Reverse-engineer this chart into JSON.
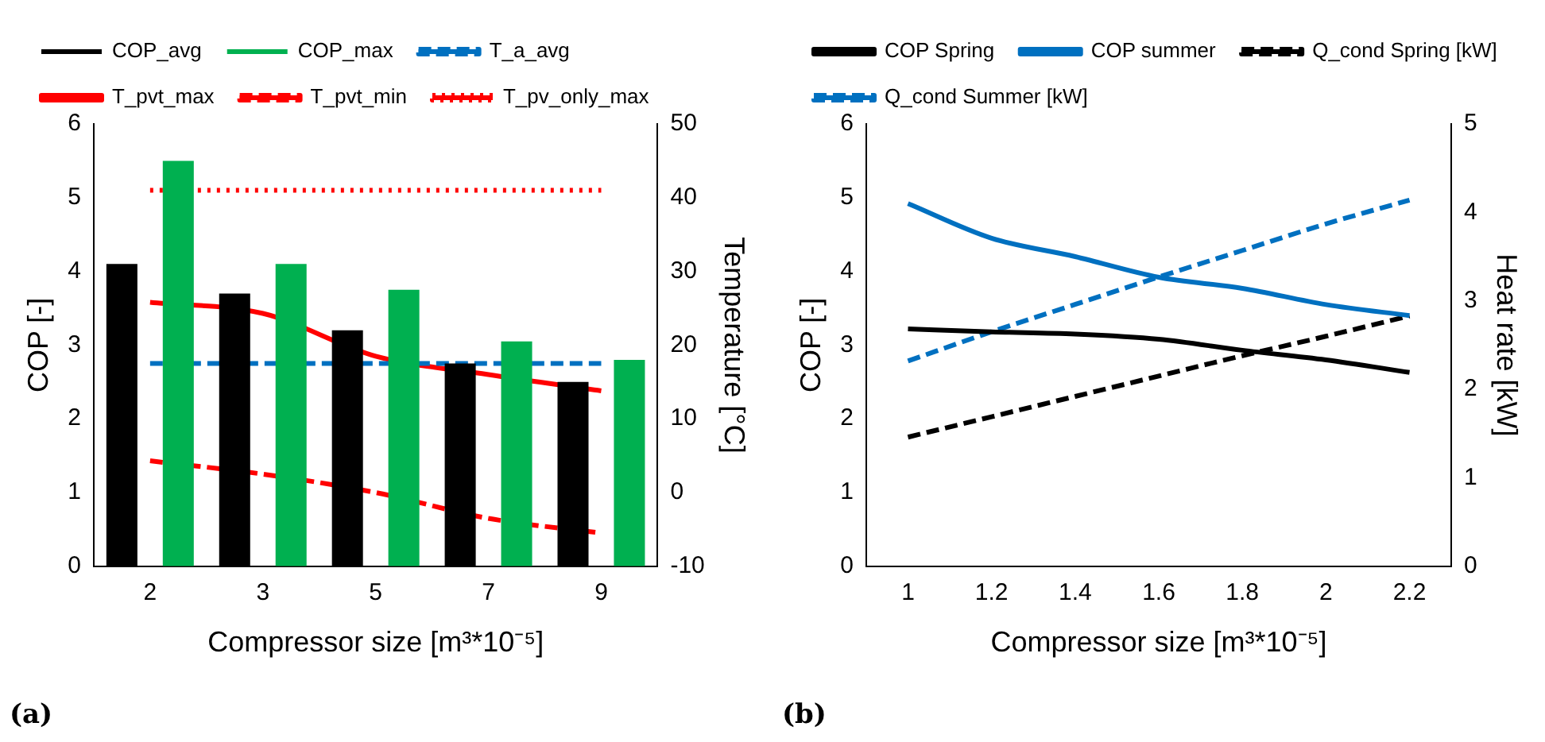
{
  "chart_data": [
    {
      "type": "bar",
      "xlabel": "Compressor size [m³*10⁻⁵]",
      "ylabel": "COP [-]",
      "y2label": "Temperature [°C]",
      "categories": [
        "2",
        "3",
        "5",
        "7",
        "9"
      ],
      "legend": "top",
      "grid": false,
      "ylim": [
        0,
        6
      ],
      "yticks": [
        0,
        1,
        2,
        3,
        4,
        5,
        6
      ],
      "y2lim": [
        -10,
        50
      ],
      "y2ticks": [
        -10,
        0,
        10,
        20,
        30,
        40,
        50
      ],
      "annotations": [
        "(a)"
      ],
      "series": [
        {
          "name": "COP_avg",
          "type": "bar",
          "color": "#000000",
          "values": [
            4.1,
            3.7,
            3.2,
            2.75,
            2.5
          ]
        },
        {
          "name": "COP_max",
          "type": "bar",
          "color": "#00b050",
          "values": [
            5.5,
            4.1,
            3.75,
            3.05,
            2.8
          ]
        },
        {
          "name": "T_a_avg",
          "type": "line",
          "axis": "y2",
          "line_style": "dashed",
          "color": "#0070c0",
          "values": [
            17.5,
            17.5,
            17.5,
            17.5,
            17.5
          ]
        },
        {
          "name": "T_pvt_max",
          "type": "line",
          "axis": "y2",
          "line_style": "solid",
          "color": "#ff0000",
          "values": [
            25.8,
            24.3,
            18.5,
            16,
            13.8
          ]
        },
        {
          "name": "T_pvt_min",
          "type": "line",
          "axis": "y2",
          "line_style": "dashed",
          "color": "#ff0000",
          "values": [
            4.3,
            2.5,
            0,
            -3.5,
            -5.5
          ]
        },
        {
          "name": "T_pv_only_max",
          "type": "line",
          "axis": "y2",
          "line_style": "dotted",
          "color": "#ff0000",
          "values": [
            41,
            41,
            41,
            41,
            41
          ]
        }
      ]
    },
    {
      "type": "line",
      "xlabel": "Compressor size [m³*10⁻⁵]",
      "ylabel": "COP [-]",
      "y2label": "Heat rate [kW]",
      "categories": [
        "1",
        "1.2",
        "1.4",
        "1.6",
        "1.8",
        "2",
        "2.2"
      ],
      "legend": "top",
      "grid": false,
      "ylim": [
        0,
        6
      ],
      "yticks": [
        0,
        1,
        2,
        3,
        4,
        5,
        6
      ],
      "y2lim": [
        0,
        5
      ],
      "y2ticks": [
        0,
        1,
        2,
        3,
        4,
        5
      ],
      "annotations": [
        "(b)"
      ],
      "series": [
        {
          "name": "COP Spring",
          "line_style": "solid",
          "color": "#000000",
          "values": [
            3.22,
            3.18,
            3.15,
            3.08,
            2.93,
            2.8,
            2.63
          ]
        },
        {
          "name": "COP summer",
          "line_style": "solid",
          "color": "#0070c0",
          "values": [
            4.92,
            4.45,
            4.2,
            3.92,
            3.77,
            3.55,
            3.4
          ]
        },
        {
          "name": "Q_cond Spring [kW]",
          "axis": "y2",
          "line_style": "dashed",
          "color": "#000000",
          "values": [
            1.46,
            1.69,
            1.92,
            2.15,
            2.38,
            2.6,
            2.83
          ]
        },
        {
          "name": "Q_cond Summer [kW]",
          "axis": "y2",
          "line_style": "dashed",
          "color": "#0070c0",
          "values": [
            2.32,
            2.65,
            2.96,
            3.27,
            3.57,
            3.87,
            4.14
          ]
        }
      ]
    }
  ]
}
